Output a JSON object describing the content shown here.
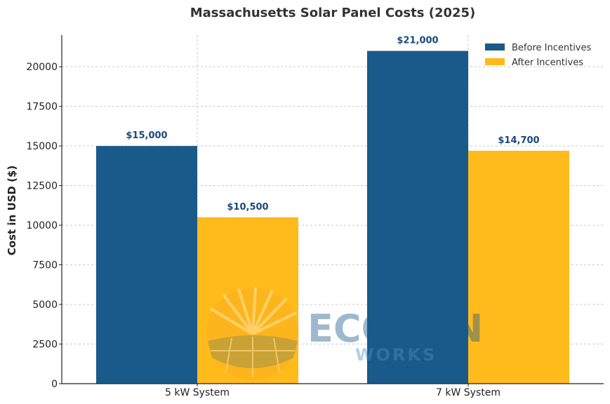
{
  "chart_data": {
    "type": "bar",
    "title": "Massachusetts Solar Panel Costs (2025)",
    "xlabel": "",
    "ylabel": "Cost in USD ($)",
    "categories": [
      "5 kW System",
      "7 kW System"
    ],
    "series": [
      {
        "name": "Before Incentives",
        "values": [
          15000,
          21000
        ],
        "labels": [
          "$15,000",
          "$21,000"
        ],
        "color": "#1a5a8a"
      },
      {
        "name": "After Incentives",
        "values": [
          10500,
          14700
        ],
        "labels": [
          "$10,500",
          "$14,700"
        ],
        "color": "#ffbb1c"
      }
    ],
    "ylim": [
      0,
      22000
    ],
    "yticks": [
      0,
      2500,
      5000,
      7500,
      10000,
      12500,
      15000,
      17500,
      20000
    ],
    "grid": true,
    "legend": "top-right"
  },
  "watermark": {
    "logo_text": "ECOSUN",
    "logo_subtext": "WORKS",
    "colors": {
      "eco": "#2aa84a",
      "sun": "#1a5a8a",
      "works": "#4a90c8",
      "emblem": "#f5a020"
    }
  }
}
